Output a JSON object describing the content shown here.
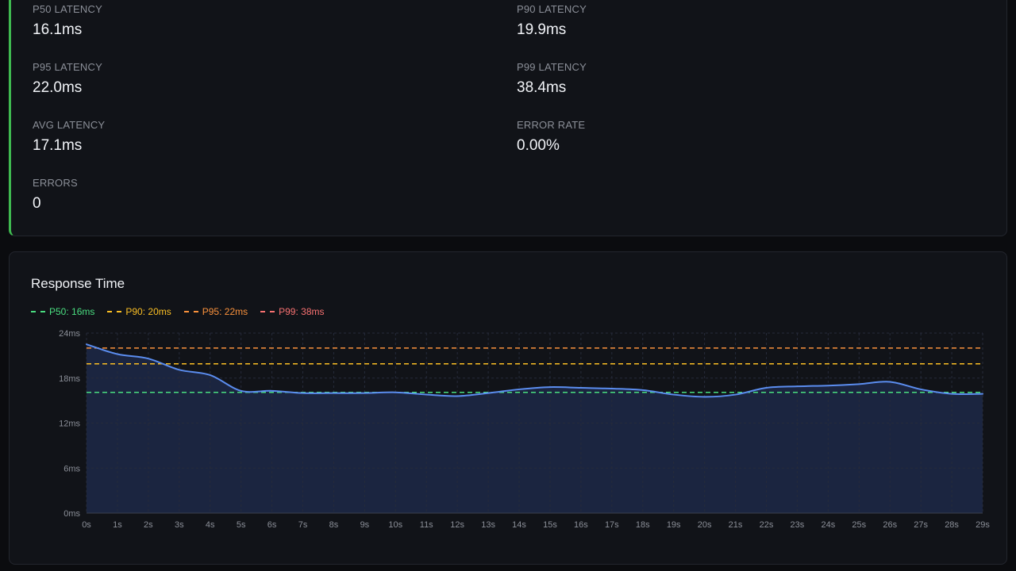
{
  "stats": [
    {
      "label": "P50 LATENCY",
      "value": "16.1ms"
    },
    {
      "label": "P90 LATENCY",
      "value": "19.9ms"
    },
    {
      "label": "P95 LATENCY",
      "value": "22.0ms"
    },
    {
      "label": "P99 LATENCY",
      "value": "38.4ms"
    },
    {
      "label": "AVG LATENCY",
      "value": "17.1ms"
    },
    {
      "label": "ERROR RATE",
      "value": "0.00%"
    },
    {
      "label": "ERRORS",
      "value": "0"
    }
  ],
  "colors": {
    "accent_border": "#3fb950",
    "line": "#5b8def",
    "area": "#1b2540",
    "grid": "#262b3a",
    "p50": "#4ade80",
    "p90": "#fbbf24",
    "p95": "#fb923c",
    "p99": "#f87171"
  },
  "chart_data": {
    "type": "line",
    "title": "Response Time",
    "y_unit": "ms",
    "ylim": [
      0,
      24
    ],
    "y_ticks": [
      "0ms",
      "6ms",
      "12ms",
      "18ms",
      "24ms"
    ],
    "x_ticks": [
      "0s",
      "1s",
      "2s",
      "3s",
      "4s",
      "5s",
      "6s",
      "7s",
      "8s",
      "9s",
      "10s",
      "11s",
      "12s",
      "13s",
      "14s",
      "15s",
      "16s",
      "17s",
      "18s",
      "19s",
      "20s",
      "21s",
      "22s",
      "23s",
      "24s",
      "25s",
      "26s",
      "27s",
      "28s",
      "29s"
    ],
    "x": [
      0,
      1,
      2,
      3,
      4,
      5,
      6,
      7,
      8,
      9,
      10,
      11,
      12,
      13,
      14,
      15,
      16,
      17,
      18,
      19,
      20,
      21,
      22,
      23,
      24,
      25,
      26,
      27,
      28,
      29
    ],
    "series": [
      {
        "values": [
          22.5,
          21.2,
          20.6,
          19.1,
          18.4,
          16.3,
          16.3,
          16.0,
          16.0,
          16.0,
          16.1,
          15.8,
          15.6,
          16.0,
          16.5,
          16.8,
          16.7,
          16.6,
          16.4,
          15.8,
          15.5,
          15.8,
          16.7,
          16.9,
          17.0,
          17.2,
          17.5,
          16.5,
          15.9,
          15.9
        ]
      }
    ],
    "reference_lines": [
      {
        "label": "P50: 16ms",
        "value": 16.1,
        "color_key": "p50"
      },
      {
        "label": "P90: 20ms",
        "value": 19.9,
        "color_key": "p90"
      },
      {
        "label": "P95: 22ms",
        "value": 22.0,
        "color_key": "p95"
      },
      {
        "label": "P99: 38ms",
        "value": 38.4,
        "color_key": "p99"
      }
    ],
    "grid": true,
    "legend_position": "top-left"
  }
}
